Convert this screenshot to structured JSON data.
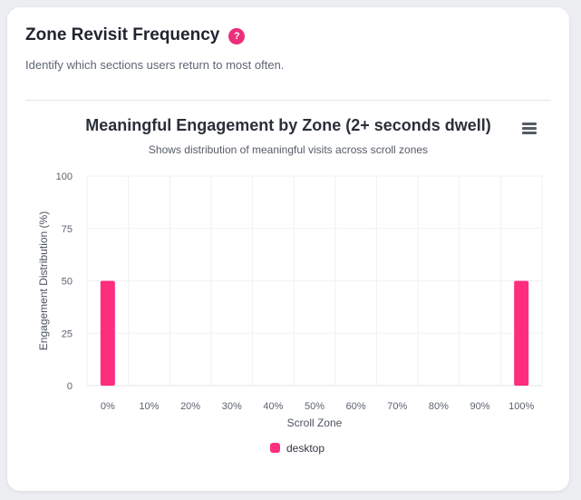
{
  "header": {
    "title": "Zone Revisit Frequency",
    "help_glyph": "?",
    "subtitle": "Identify which sections users return to most often."
  },
  "chart_data": {
    "type": "bar",
    "title": "Meaningful Engagement by Zone (2+ seconds dwell)",
    "subtitle": "Shows distribution of meaningful visits across scroll zones",
    "xlabel": "Scroll Zone",
    "ylabel": "Engagement Distribution (%)",
    "ylim": [
      0,
      100
    ],
    "yticks": [
      0,
      25,
      50,
      75,
      100
    ],
    "grid": true,
    "legend_position": "bottom-center",
    "categories": [
      "0%",
      "10%",
      "20%",
      "30%",
      "40%",
      "50%",
      "60%",
      "70%",
      "80%",
      "90%",
      "100%"
    ],
    "series": [
      {
        "name": "desktop",
        "color": "#ff2d7e",
        "values": [
          50,
          0,
          0,
          0,
          0,
          0,
          0,
          0,
          0,
          0,
          50
        ]
      }
    ]
  }
}
